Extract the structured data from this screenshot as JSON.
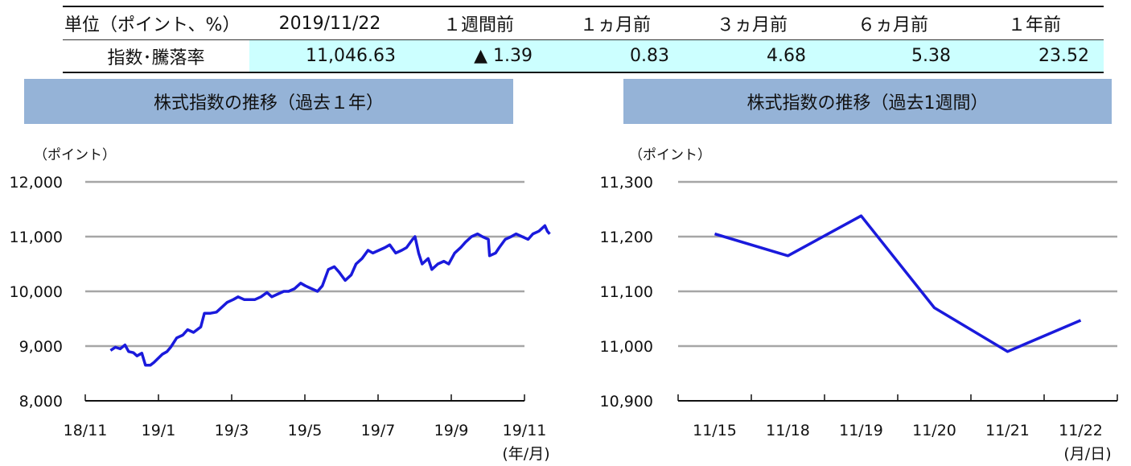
{
  "table": {
    "headers": [
      "単位（ポイント、%）",
      "2019/11/22",
      "１週間前",
      "１ヵ月前",
      "３ヵ月前",
      "６ヵ月前",
      "１年前"
    ],
    "row_label": "指数･騰落率",
    "values": [
      "11,046.63",
      "▲ 1.39",
      "0.83",
      "4.68",
      "5.38",
      "23.52"
    ]
  },
  "chart_data": [
    {
      "type": "line",
      "title": "株式指数の推移（過去１年）",
      "unit_label": "（ポイント）",
      "x_unit_label": "(年/月)",
      "x_ticks": [
        "18/11",
        "19/1",
        "19/3",
        "19/5",
        "19/7",
        "19/9",
        "19/11"
      ],
      "y_ticks": [
        "12,000",
        "11,000",
        "10,000",
        "9,000",
        "8,000"
      ],
      "ylim": [
        8000,
        12000
      ],
      "grid": true,
      "color": "#1a1adc",
      "series": [
        {
          "x": [
            "2018-11-22",
            "2018-11-26",
            "2018-11-30",
            "2018-12-04",
            "2018-12-07",
            "2018-12-11",
            "2018-12-14",
            "2018-12-18",
            "2018-12-21",
            "2018-12-25",
            "2018-12-28",
            "2019-01-04",
            "2019-01-08",
            "2019-01-11",
            "2019-01-16",
            "2019-01-21",
            "2019-01-25",
            "2019-01-30",
            "2019-02-05",
            "2019-02-08",
            "2019-02-13",
            "2019-02-18",
            "2019-02-22",
            "2019-02-27",
            "2019-03-04",
            "2019-03-08",
            "2019-03-13",
            "2019-03-18",
            "2019-03-22",
            "2019-03-27",
            "2019-04-01",
            "2019-04-05",
            "2019-04-10",
            "2019-04-15",
            "2019-04-19",
            "2019-04-24",
            "2019-04-29",
            "2019-05-03",
            "2019-05-08",
            "2019-05-13",
            "2019-05-17",
            "2019-05-22",
            "2019-05-27",
            "2019-05-31",
            "2019-06-05",
            "2019-06-10",
            "2019-06-14",
            "2019-06-19",
            "2019-06-24",
            "2019-06-28",
            "2019-07-03",
            "2019-07-08",
            "2019-07-12",
            "2019-07-17",
            "2019-07-22",
            "2019-07-26",
            "2019-07-31",
            "2019-08-02",
            "2019-08-05",
            "2019-08-08",
            "2019-08-13",
            "2019-08-16",
            "2019-08-21",
            "2019-08-26",
            "2019-08-30",
            "2019-09-04",
            "2019-09-09",
            "2019-09-13",
            "2019-09-18",
            "2019-09-23",
            "2019-09-27",
            "2019-10-02",
            "2019-10-03",
            "2019-10-08",
            "2019-10-11",
            "2019-10-16",
            "2019-10-21",
            "2019-10-25",
            "2019-10-30",
            "2019-11-04",
            "2019-11-08",
            "2019-11-13",
            "2019-11-18",
            "2019-11-20",
            "2019-11-22"
          ],
          "values": [
            8920,
            8980,
            8950,
            9020,
            8900,
            8880,
            8820,
            8870,
            8650,
            8650,
            8700,
            8850,
            8900,
            8980,
            9150,
            9200,
            9300,
            9250,
            9350,
            9600,
            9600,
            9620,
            9700,
            9800,
            9850,
            9900,
            9850,
            9850,
            9850,
            9900,
            9980,
            9900,
            9950,
            10000,
            10000,
            10050,
            10150,
            10100,
            10050,
            10000,
            10100,
            10400,
            10450,
            10350,
            10200,
            10300,
            10500,
            10600,
            10750,
            10700,
            10750,
            10800,
            10850,
            10700,
            10750,
            10800,
            10950,
            11000,
            10700,
            10500,
            10600,
            10400,
            10500,
            10550,
            10500,
            10700,
            10800,
            10900,
            11000,
            11050,
            11000,
            10950,
            10650,
            10700,
            10800,
            10950,
            11000,
            11050,
            11000,
            10950,
            11050,
            11100,
            11200,
            11100,
            11047
          ]
        }
      ]
    },
    {
      "type": "line",
      "title": "株式指数の推移（過去1週間）",
      "unit_label": "（ポイント）",
      "x_unit_label": "(月/日)",
      "categories": [
        "11/15",
        "11/18",
        "11/19",
        "11/20",
        "11/21",
        "11/22"
      ],
      "y_ticks": [
        "11,300",
        "11,200",
        "11,100",
        "11,000",
        "10,900"
      ],
      "ylim": [
        10900,
        11300
      ],
      "grid": true,
      "color": "#1a1adc",
      "series": [
        {
          "values": [
            11205,
            11165,
            11238,
            11070,
            10990,
            11047
          ]
        }
      ]
    }
  ]
}
